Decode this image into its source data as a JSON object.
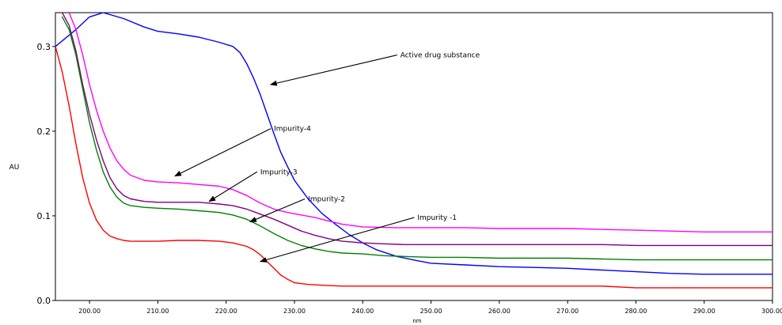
{
  "chart_data": {
    "type": "line",
    "title": "",
    "xlabel": "nm",
    "ylabel": "AU",
    "xlim": [
      195,
      300
    ],
    "ylim": [
      0,
      0.34
    ],
    "x_ticks": [
      "200.00",
      "210.00",
      "220.00",
      "230.00",
      "240.00",
      "250.00",
      "260.00",
      "270.00",
      "280.00",
      "290.00",
      "300.00"
    ],
    "y_ticks": [
      "0.0",
      "0.1",
      "0.2",
      "0.3"
    ],
    "grid": false,
    "legend": "none",
    "series": [
      {
        "name": "Active drug substance",
        "color": "#0000ff",
        "x": [
          195,
          198,
          200,
          202,
          205,
          208,
          210,
          213,
          216,
          219,
          221,
          222,
          223,
          224,
          225,
          226,
          227,
          228,
          229,
          230,
          232,
          234,
          236,
          238,
          240,
          242,
          245,
          248,
          250,
          255,
          260,
          265,
          270,
          275,
          280,
          285,
          290,
          295,
          300
        ],
        "y": [
          0.3,
          0.32,
          0.335,
          0.34,
          0.333,
          0.323,
          0.318,
          0.315,
          0.311,
          0.305,
          0.3,
          0.293,
          0.28,
          0.263,
          0.243,
          0.22,
          0.197,
          0.175,
          0.158,
          0.142,
          0.12,
          0.103,
          0.09,
          0.078,
          0.068,
          0.06,
          0.052,
          0.047,
          0.044,
          0.042,
          0.04,
          0.039,
          0.038,
          0.036,
          0.034,
          0.032,
          0.031,
          0.031,
          0.031
        ]
      },
      {
        "name": "Impurity-4",
        "color": "#ff00ff",
        "x": [
          197,
          198,
          199,
          200,
          201,
          202,
          203,
          204,
          205,
          206,
          208,
          210,
          213,
          216,
          219,
          221,
          223,
          225,
          227,
          229,
          231,
          233,
          235,
          237,
          240,
          245,
          250,
          255,
          260,
          265,
          270,
          275,
          280,
          285,
          290,
          295,
          300
        ],
        "y": [
          0.34,
          0.32,
          0.29,
          0.255,
          0.225,
          0.2,
          0.18,
          0.165,
          0.155,
          0.148,
          0.142,
          0.14,
          0.139,
          0.137,
          0.135,
          0.131,
          0.124,
          0.115,
          0.108,
          0.104,
          0.101,
          0.098,
          0.094,
          0.09,
          0.087,
          0.086,
          0.086,
          0.086,
          0.085,
          0.085,
          0.085,
          0.084,
          0.083,
          0.082,
          0.081,
          0.081,
          0.081
        ]
      },
      {
        "name": "Impurity-3",
        "color": "#800080",
        "x": [
          196,
          197,
          198,
          199,
          200,
          201,
          202,
          203,
          204,
          205,
          206,
          208,
          210,
          213,
          216,
          219,
          221,
          223,
          225,
          227,
          229,
          231,
          233,
          235,
          237,
          240,
          243,
          246,
          250,
          255,
          260,
          265,
          270,
          275,
          280,
          285,
          290,
          295,
          300
        ],
        "y": [
          0.34,
          0.325,
          0.295,
          0.255,
          0.22,
          0.19,
          0.165,
          0.145,
          0.132,
          0.124,
          0.12,
          0.117,
          0.116,
          0.116,
          0.116,
          0.114,
          0.112,
          0.108,
          0.102,
          0.096,
          0.089,
          0.082,
          0.077,
          0.073,
          0.07,
          0.068,
          0.067,
          0.066,
          0.066,
          0.066,
          0.066,
          0.066,
          0.066,
          0.066,
          0.065,
          0.065,
          0.065,
          0.065,
          0.065
        ]
      },
      {
        "name": "Impurity-2",
        "color": "#008000",
        "x": [
          196,
          197,
          198,
          199,
          200,
          201,
          202,
          203,
          204,
          205,
          206,
          208,
          210,
          213,
          216,
          219,
          221,
          223,
          225,
          227,
          229,
          231,
          233,
          235,
          237,
          240,
          243,
          246,
          250,
          255,
          260,
          265,
          270,
          275,
          280,
          285,
          290,
          295,
          300
        ],
        "y": [
          0.335,
          0.32,
          0.29,
          0.25,
          0.21,
          0.178,
          0.152,
          0.134,
          0.122,
          0.115,
          0.112,
          0.11,
          0.109,
          0.108,
          0.106,
          0.104,
          0.101,
          0.096,
          0.088,
          0.079,
          0.071,
          0.065,
          0.061,
          0.058,
          0.056,
          0.055,
          0.053,
          0.052,
          0.051,
          0.051,
          0.05,
          0.05,
          0.05,
          0.049,
          0.048,
          0.048,
          0.048,
          0.048,
          0.048
        ]
      },
      {
        "name": "Impurity -1",
        "color": "#ff0000",
        "x": [
          195,
          196,
          197,
          198,
          199,
          200,
          201,
          202,
          203,
          204,
          205,
          206,
          208,
          210,
          213,
          216,
          219,
          221,
          223,
          224,
          225,
          226,
          227,
          228,
          229,
          230,
          232,
          234,
          237,
          240,
          245,
          250,
          255,
          260,
          265,
          270,
          275,
          280,
          285,
          290,
          295,
          300
        ],
        "y": [
          0.3,
          0.27,
          0.23,
          0.185,
          0.145,
          0.115,
          0.095,
          0.083,
          0.076,
          0.073,
          0.071,
          0.07,
          0.07,
          0.07,
          0.071,
          0.071,
          0.07,
          0.068,
          0.064,
          0.06,
          0.054,
          0.046,
          0.038,
          0.03,
          0.025,
          0.021,
          0.019,
          0.018,
          0.017,
          0.017,
          0.017,
          0.017,
          0.017,
          0.017,
          0.017,
          0.017,
          0.017,
          0.015,
          0.015,
          0.015,
          0.015,
          0.015
        ]
      }
    ],
    "annotations": [
      {
        "text": "Active drug substance",
        "point": [
          226.5,
          0.255
        ],
        "label_at": [
          245.5,
          0.29
        ]
      },
      {
        "text": "Impurity-4",
        "point": [
          212.5,
          0.147
        ],
        "label_at": [
          227,
          0.203
        ]
      },
      {
        "text": "Impurity-3",
        "point": [
          217.5,
          0.117
        ],
        "label_at": [
          225,
          0.152
        ]
      },
      {
        "text": "Impurity-2",
        "point": [
          223.5,
          0.093
        ],
        "label_at": [
          232,
          0.12
        ]
      },
      {
        "text": "Impurity -1",
        "point": [
          225,
          0.046
        ],
        "label_at": [
          248,
          0.098
        ]
      }
    ]
  }
}
